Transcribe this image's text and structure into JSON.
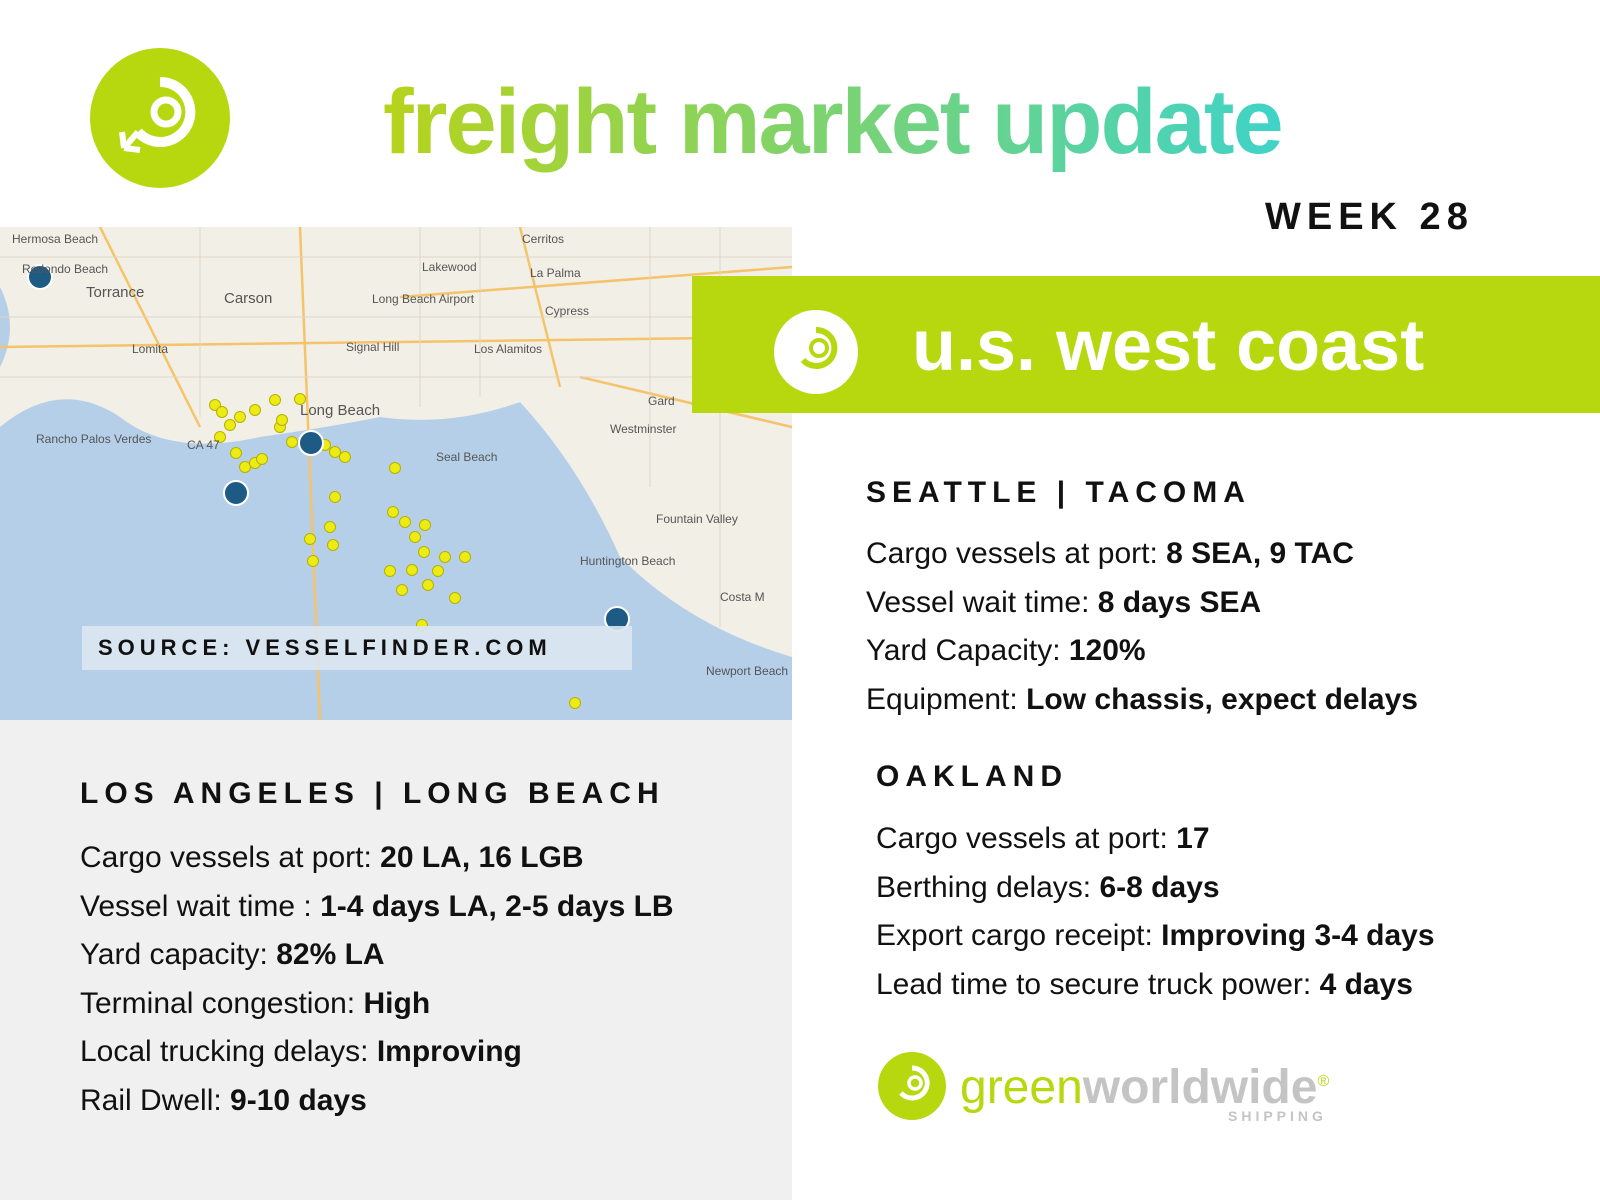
{
  "header": {
    "title": "freight market update",
    "week": "WEEK 28"
  },
  "map": {
    "source": "SOURCE: VESSELFINDER.COM",
    "places": [
      "Hermosa Beach",
      "Redondo Beach",
      "Torrance",
      "Carson",
      "Lomita",
      "Rancho Palos Verdes",
      "Long Beach Airport",
      "Signal Hill",
      "Long Beach",
      "Lakewood",
      "Cerritos",
      "La Palma",
      "Cypress",
      "Los Alamitos",
      "Westminster",
      "Seal Beach",
      "Fountain Valley",
      "Huntington Beach",
      "Costa M",
      "Newport Beach",
      "Gard",
      "CA 47"
    ]
  },
  "region": {
    "title": "u.s. west coast"
  },
  "sections": [
    {
      "name": "SEATTLE | TACOMA",
      "items": [
        {
          "label": "Cargo vessels at port:",
          "value": "8 SEA, 9 TAC"
        },
        {
          "label": "Vessel wait time:",
          "value": "8 days SEA"
        },
        {
          "label": "Yard Capacity:",
          "value": "120%"
        },
        {
          "label": "Equipment:",
          "value": "Low chassis, expect delays"
        }
      ]
    },
    {
      "name": "OAKLAND",
      "items": [
        {
          "label": "Cargo vessels at port:",
          "value": "17"
        },
        {
          "label": "Berthing delays:",
          "value": "6-8 days"
        },
        {
          "label": "Export cargo receipt:",
          "value": "Improving 3-4 days"
        },
        {
          "label": "Lead time to secure truck power:",
          "value": "4 days"
        }
      ]
    },
    {
      "name": "LOS ANGELES | LONG BEACH",
      "items": [
        {
          "label": "Cargo vessels at port:",
          "value": "20 LA, 16 LGB"
        },
        {
          "label": "Vessel wait time :",
          "value": "1-4 days LA, 2-5 days LB"
        },
        {
          "label": "Yard capacity:",
          "value": "82% LA"
        },
        {
          "label": "Terminal congestion:",
          "value": "High"
        },
        {
          "label": "Local trucking delays:",
          "value": "Improving"
        },
        {
          "label": "Rail Dwell:",
          "value": "9-10 days"
        }
      ]
    }
  ],
  "logo": {
    "green": "green",
    "worldwide": "worldwide",
    "mark": "®",
    "sub": "SHIPPING"
  }
}
